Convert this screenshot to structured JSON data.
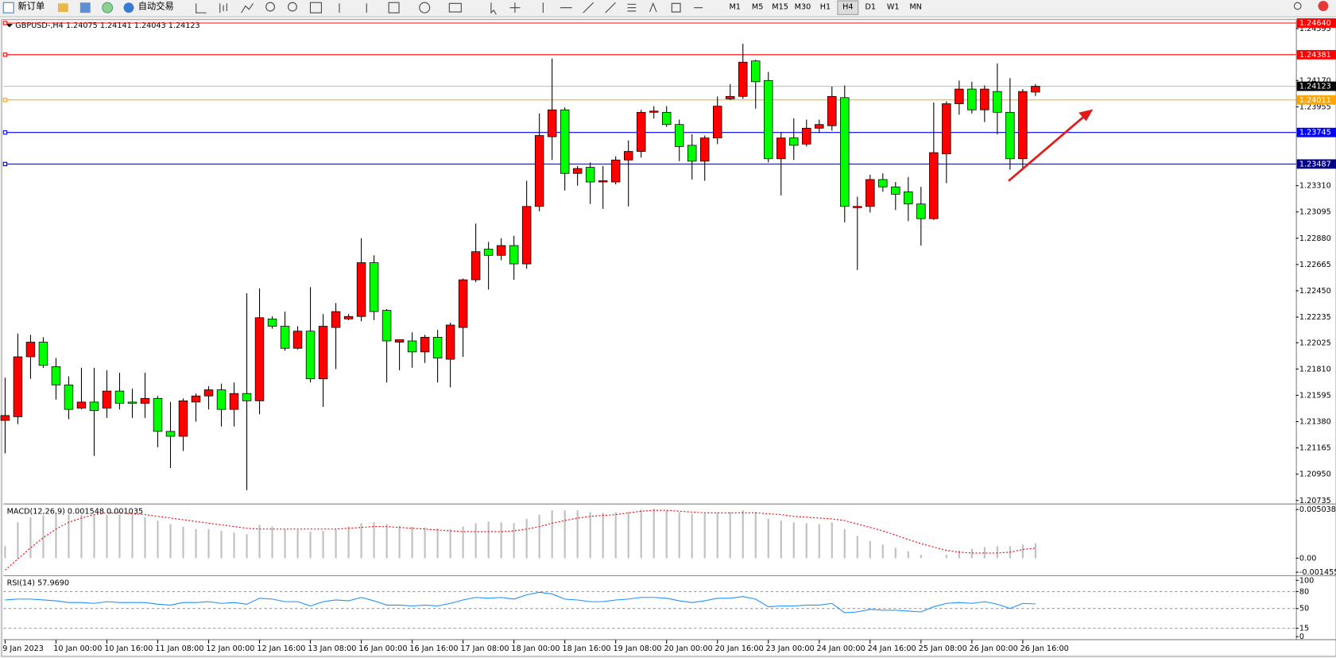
{
  "toolbar": {
    "new_order": "新订单",
    "auto_trading": "自动交易",
    "timeframes": [
      "M1",
      "M5",
      "M15",
      "M30",
      "H1",
      "H4",
      "D1",
      "W1",
      "MN"
    ],
    "active_timeframe": "H4"
  },
  "chart_data": [
    {
      "type": "candlestick",
      "title": "GBPUSD-,H4  1.24075 1.24141 1.24043 1.24123",
      "categories": [
        "9 Jan 2023",
        null,
        null,
        null,
        "10 Jan 00:00",
        null,
        null,
        null,
        "10 Jan 16:00",
        null,
        null,
        null,
        "11 Jan 08:00",
        null,
        null,
        null,
        "12 Jan 00:00",
        null,
        null,
        null,
        "12 Jan 16:00",
        null,
        null,
        null,
        "13 Jan 08:00",
        null,
        null,
        null,
        "16 Jan 00:00",
        null,
        null,
        null,
        "16 Jan 16:00",
        null,
        null,
        null,
        "17 Jan 08:00",
        null,
        null,
        null,
        "18 Jan 00:00",
        null,
        null,
        null,
        "18 Jan 16:00",
        null,
        null,
        null,
        "19 Jan 08:00",
        null,
        null,
        null,
        "20 Jan 00:00",
        null,
        null,
        null,
        "20 Jan 16:00",
        null,
        null,
        null,
        "23 Jan 00:00",
        null,
        null,
        null,
        "24 Jan 00:00",
        null,
        null,
        null,
        "24 Jan 16:00",
        null,
        null,
        null,
        "25 Jan 08:00",
        null,
        null,
        null,
        "26 Jan 00:00",
        null,
        null,
        null,
        "26 Jan 16:00",
        null
      ],
      "candles": [
        [
          1.2139,
          1.2174,
          1.2112,
          1.2143
        ],
        [
          1.2142,
          1.221,
          1.2136,
          1.2191
        ],
        [
          1.2191,
          1.2209,
          1.2173,
          1.2203
        ],
        [
          1.2203,
          1.2207,
          1.2182,
          1.2184
        ],
        [
          1.2183,
          1.219,
          1.2156,
          1.2168
        ],
        [
          1.2168,
          1.2175,
          1.214,
          1.2148
        ],
        [
          1.2149,
          1.2182,
          1.2148,
          1.2154
        ],
        [
          1.2154,
          1.2182,
          1.211,
          1.2147
        ],
        [
          1.2149,
          1.218,
          1.2141,
          1.2163
        ],
        [
          1.2163,
          1.2178,
          1.2148,
          1.2153
        ],
        [
          1.2154,
          1.2165,
          1.2141,
          1.2153
        ],
        [
          1.2153,
          1.2178,
          1.2141,
          1.2157
        ],
        [
          1.2157,
          1.2159,
          1.2117,
          1.213
        ],
        [
          1.213,
          1.2154,
          1.21,
          1.2126
        ],
        [
          1.2126,
          1.2157,
          1.2114,
          1.2155
        ],
        [
          1.2154,
          1.2161,
          1.2138,
          1.2159
        ],
        [
          1.2159,
          1.2167,
          1.2148,
          1.2164
        ],
        [
          1.2164,
          1.2169,
          1.2134,
          1.2148
        ],
        [
          1.2148,
          1.217,
          1.2134,
          1.2161
        ],
        [
          1.2161,
          1.2243,
          1.2082,
          1.2155
        ],
        [
          1.2155,
          1.2247,
          1.2144,
          1.2223
        ],
        [
          1.2222,
          1.2224,
          1.2214,
          1.2216
        ],
        [
          1.2216,
          1.2228,
          1.2196,
          1.2198
        ],
        [
          1.2198,
          1.2216,
          1.2197,
          1.2212
        ],
        [
          1.2212,
          1.2248,
          1.217,
          1.2173
        ],
        [
          1.2173,
          1.2226,
          1.215,
          1.2216
        ],
        [
          1.2215,
          1.2235,
          1.2181,
          1.2228
        ],
        [
          1.2222,
          1.2226,
          1.2221,
          1.2224
        ],
        [
          1.2224,
          1.2288,
          1.222,
          1.2268
        ],
        [
          1.2268,
          1.2274,
          1.2221,
          1.2228
        ],
        [
          1.2229,
          1.223,
          1.217,
          1.2204
        ],
        [
          1.2203,
          1.2205,
          1.218,
          1.2205
        ],
        [
          1.2204,
          1.2211,
          1.2182,
          1.2195
        ],
        [
          1.2195,
          1.2209,
          1.2186,
          1.2207
        ],
        [
          1.2207,
          1.2213,
          1.217,
          1.219
        ],
        [
          1.2189,
          1.2219,
          1.2166,
          1.2217
        ],
        [
          1.2215,
          1.2255,
          1.2191,
          1.2254
        ],
        [
          1.2254,
          1.23,
          1.2252,
          1.2277
        ],
        [
          1.2279,
          1.2285,
          1.2246,
          1.2274
        ],
        [
          1.2274,
          1.2288,
          1.227,
          1.2282
        ],
        [
          1.2282,
          1.229,
          1.2254,
          1.2267
        ],
        [
          1.2267,
          1.2335,
          1.2263,
          1.2314
        ],
        [
          1.2314,
          1.239,
          1.231,
          1.2372
        ],
        [
          1.2371,
          1.2435,
          1.2352,
          1.2393
        ],
        [
          1.2393,
          1.2395,
          1.2327,
          1.2341
        ],
        [
          1.2341,
          1.2347,
          1.2331,
          1.2345
        ],
        [
          1.2346,
          1.235,
          1.2316,
          1.2334
        ],
        [
          1.2334,
          1.2347,
          1.2312,
          1.2335
        ],
        [
          1.2334,
          1.2355,
          1.2332,
          1.2352
        ],
        [
          1.2352,
          1.2368,
          1.2314,
          1.2359
        ],
        [
          1.2359,
          1.2393,
          1.2354,
          1.2391
        ],
        [
          1.2391,
          1.2396,
          1.2386,
          1.2392
        ],
        [
          1.2391,
          1.2396,
          1.2379,
          1.2381
        ],
        [
          1.2381,
          1.2385,
          1.2351,
          1.2363
        ],
        [
          1.2364,
          1.2373,
          1.2336,
          1.2351
        ],
        [
          1.2351,
          1.2372,
          1.2335,
          1.237
        ],
        [
          1.237,
          1.2404,
          1.2365,
          1.2396
        ],
        [
          1.2402,
          1.2414,
          1.2401,
          1.2404
        ],
        [
          1.2404,
          1.2447,
          1.2402,
          1.2432
        ],
        [
          1.2433,
          1.2434,
          1.2394,
          1.2416
        ],
        [
          1.2417,
          1.2424,
          1.235,
          1.2353
        ],
        [
          1.2353,
          1.2375,
          1.2323,
          1.237
        ],
        [
          1.237,
          1.2386,
          1.2352,
          1.2364
        ],
        [
          1.2365,
          1.2385,
          1.2363,
          1.2378
        ],
        [
          1.2378,
          1.2385,
          1.2374,
          1.2381
        ],
        [
          1.238,
          1.2412,
          1.2376,
          1.2404
        ],
        [
          1.2403,
          1.2413,
          1.2301,
          1.2314
        ],
        [
          1.2313,
          1.2322,
          1.2262,
          1.2314
        ],
        [
          1.2314,
          1.234,
          1.2309,
          1.2336
        ],
        [
          1.2336,
          1.2341,
          1.2326,
          1.233
        ],
        [
          1.233,
          1.2334,
          1.2311,
          1.2324
        ],
        [
          1.2326,
          1.2338,
          1.2302,
          1.2316
        ],
        [
          1.2316,
          1.233,
          1.2282,
          1.2304
        ],
        [
          1.2304,
          1.2399,
          1.2303,
          1.2358
        ],
        [
          1.2357,
          1.24,
          1.2333,
          1.2398
        ],
        [
          1.2398,
          1.2417,
          1.2389,
          1.241
        ],
        [
          1.241,
          1.2416,
          1.239,
          1.2393
        ],
        [
          1.2393,
          1.2413,
          1.2383,
          1.241
        ],
        [
          1.2408,
          1.2431,
          1.2373,
          1.2391
        ],
        [
          1.2391,
          1.2419,
          1.2344,
          1.2353
        ],
        [
          1.2353,
          1.241,
          1.2344,
          1.2408
        ],
        [
          1.24075,
          1.24141,
          1.24043,
          1.24123
        ]
      ],
      "up_color": "#ff0000",
      "down_color": "#00ff00",
      "current_price_color": "#c0c0c0",
      "ylim": [
        1.2071,
        1.2464
      ],
      "yticks": [
        1.24595,
        {
          "value": 1.2417,
          "label": "1.24170"
        },
        1.23955,
        {
          "value": 1.2331,
          "label": "1.23310"
        },
        1.23095,
        {
          "value": 1.2288,
          "label": "1.22880"
        },
        1.22665,
        {
          "value": 1.2245,
          "label": "1.22450"
        },
        1.22235,
        1.22025,
        {
          "value": 1.2181,
          "label": "1.21810"
        },
        1.21595,
        {
          "value": 1.2138,
          "label": "1.21380"
        },
        1.21165,
        {
          "value": 1.2095,
          "label": "1.20950"
        },
        1.20735
      ],
      "levels": [
        {
          "value": 1.2464,
          "label": "1.24640",
          "color": "#ff0000"
        },
        {
          "value": 1.24381,
          "color": "#ff0000"
        },
        {
          "value": 1.24011,
          "color": "#ffa500"
        },
        {
          "value": 1.23745,
          "color": "#0000ff"
        },
        {
          "value": 1.23487,
          "color": "#00008b"
        }
      ]
    },
    {
      "type": "macd",
      "title": "MACD(12,26,9) 0.001548 0.001035",
      "series": [
        {
          "color": "#c0c0c0",
          "values": [
            0.00124,
            0.00371,
            0.00424,
            0.00442,
            0.00451,
            0.00451,
            0.00451,
            0.00451,
            0.00451,
            0.00451,
            0.00451,
            0.00424,
            0.00389,
            0.00354,
            0.00327,
            0.00301,
            0.00301,
            0.00283,
            0.00265,
            0.00248,
            0.00345,
            0.00327,
            0.00301,
            0.00292,
            0.00274,
            0.00283,
            0.00301,
            0.00327,
            0.00362,
            0.00371,
            0.00354,
            0.00336,
            0.00327,
            0.00318,
            0.00309,
            0.00301,
            0.00327,
            0.00362,
            0.0038,
            0.00371,
            0.00362,
            0.00407,
            0.00451,
            0.00495,
            0.00495,
            0.00495,
            0.00477,
            0.00469,
            0.00477,
            0.00477,
            0.00504,
            0.00513,
            0.00495,
            0.00477,
            0.0046,
            0.0046,
            0.00469,
            0.00477,
            0.00495,
            0.00477,
            0.00407,
            0.00389,
            0.00371,
            0.00362,
            0.00354,
            0.00371,
            0.00301,
            0.0023,
            0.00177,
            0.00141,
            0.00106,
            0.00071,
            0.00035,
            0,
            0.00035,
            0.0008,
            0.00097,
            0.00115,
            0.00124,
            0.00124,
            0.00141,
            0.001548
          ]
        },
        {
          "color": "#ff0000",
          "values": [
            -0.00124,
            -9e-05,
            0.00106,
            0.00212,
            0.00301,
            0.00371,
            0.00415,
            0.00451,
            0.00469,
            0.00469,
            0.0046,
            0.00451,
            0.00433,
            0.00415,
            0.00398,
            0.0038,
            0.00362,
            0.00345,
            0.00327,
            0.00309,
            0.00301,
            0.00301,
            0.00301,
            0.00301,
            0.00301,
            0.00301,
            0.00301,
            0.00309,
            0.00318,
            0.00327,
            0.00327,
            0.00318,
            0.00309,
            0.00301,
            0.00292,
            0.00283,
            0.00274,
            0.00274,
            0.00274,
            0.00274,
            0.00283,
            0.00301,
            0.00327,
            0.00362,
            0.00389,
            0.00415,
            0.00433,
            0.00442,
            0.00451,
            0.00469,
            0.00486,
            0.00495,
            0.00495,
            0.00486,
            0.00477,
            0.00469,
            0.00469,
            0.00469,
            0.00469,
            0.00469,
            0.0046,
            0.00451,
            0.00433,
            0.00424,
            0.00415,
            0.00407,
            0.00389,
            0.00354,
            0.00318,
            0.00283,
            0.00239,
            0.00194,
            0.0015,
            0.00115,
            0.0008,
            0.00062,
            0.00053,
            0.00053,
            0.00053,
            0.00062,
            0.0009,
            0.001035
          ]
        }
      ],
      "ylim": [
        -0.00159,
        0.00539
      ],
      "yticks": [
        0.005038,
        {
          "value": 0,
          "label": "0.00"
        },
        -0.001455
      ]
    },
    {
      "type": "line",
      "title": "RSI(14) 57.9690",
      "series": [
        {
          "color": "#1e90ff",
          "values": [
            65.2,
            66.7,
            66.7,
            65.2,
            63.6,
            60.6,
            60.6,
            59.1,
            62.1,
            60.6,
            60.6,
            60.6,
            57.6,
            56.1,
            60.6,
            60.6,
            62.1,
            59.1,
            60.6,
            57.6,
            68.2,
            66.7,
            62.1,
            62.1,
            54.5,
            62.1,
            65.2,
            63.6,
            69.7,
            63.6,
            56.1,
            56.1,
            54.5,
            56.1,
            54.5,
            59.1,
            65.2,
            69.7,
            68.2,
            69.7,
            66.7,
            74.2,
            78.8,
            75.8,
            66.7,
            65.2,
            62.1,
            62.1,
            65.2,
            66.7,
            69.7,
            69.7,
            68.2,
            63.6,
            60.6,
            63.6,
            68.2,
            68.2,
            71.2,
            66.7,
            53.0,
            54.5,
            54.5,
            56.1,
            56.1,
            59.1,
            42.4,
            43.9,
            48.5,
            47.0,
            47.0,
            45.5,
            43.9,
            53.0,
            59.1,
            60.6,
            59.1,
            62.1,
            57.6,
            50.0,
            59.1,
            57.969
          ]
        }
      ],
      "ylim": [
        -4.5,
        104.5
      ],
      "yticks": [
        100,
        80,
        50,
        15,
        0
      ]
    }
  ]
}
